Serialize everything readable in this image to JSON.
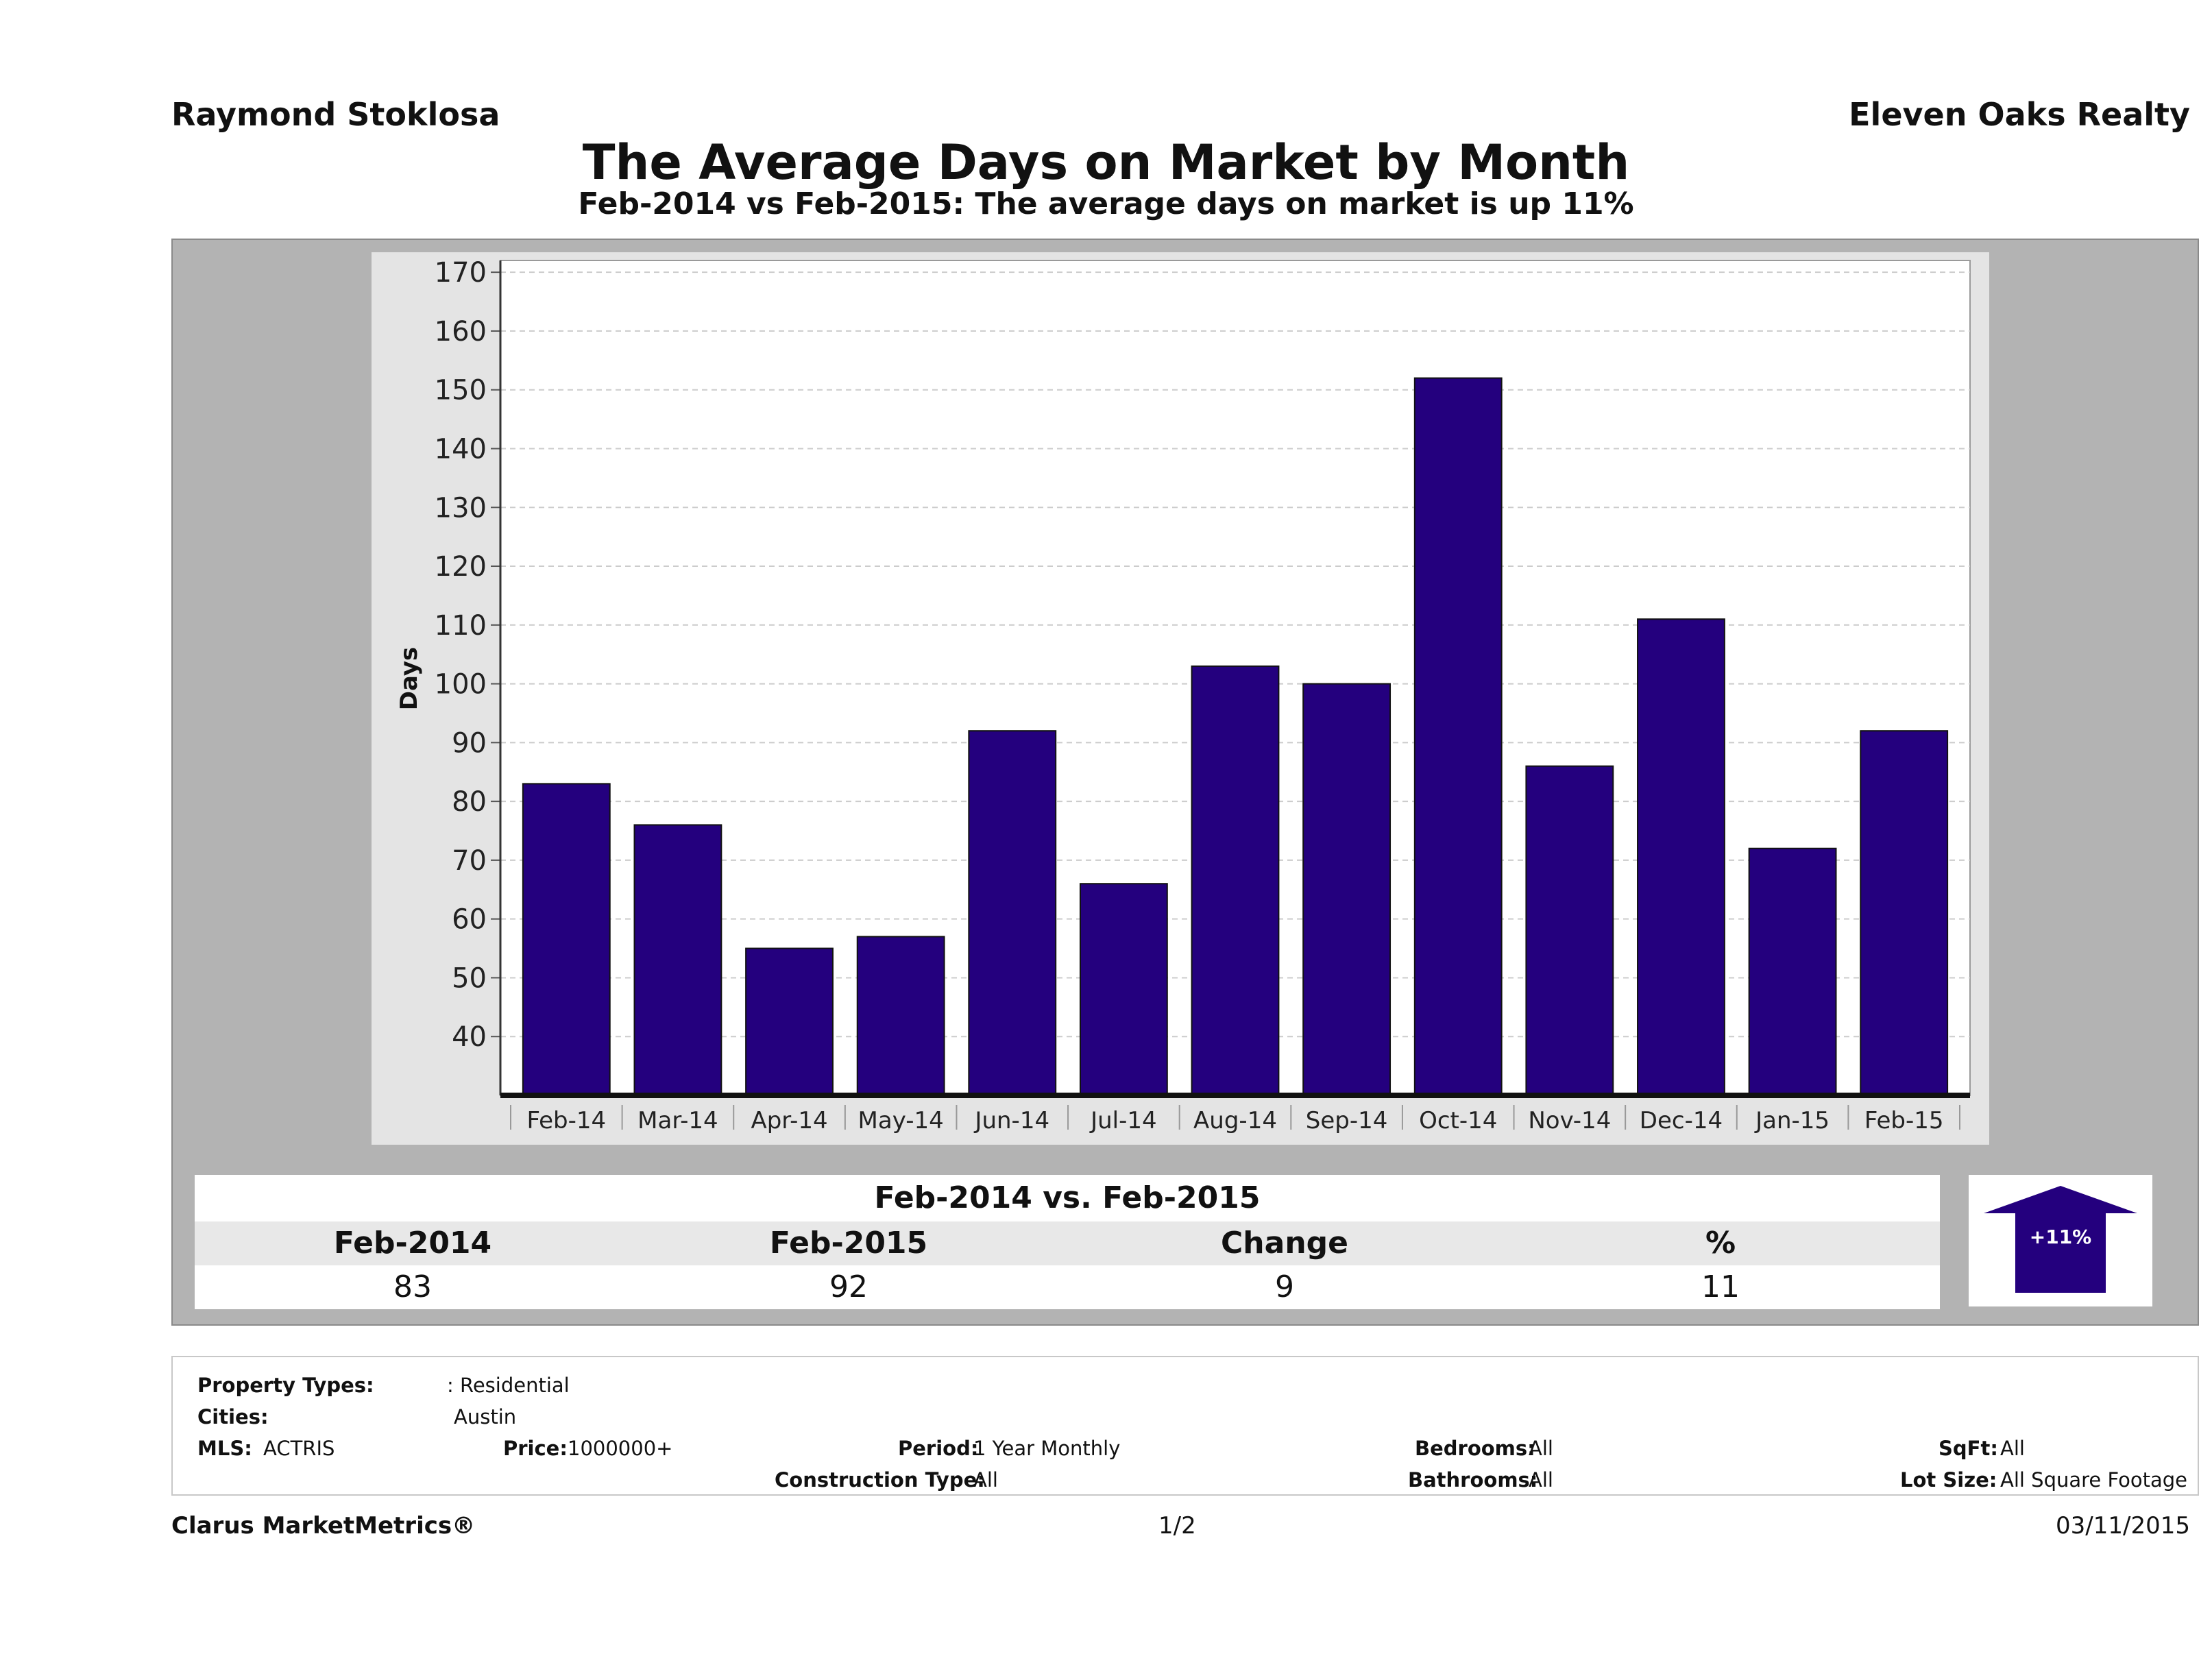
{
  "header": {
    "agent_name": "Raymond Stoklosa",
    "company": "Eleven Oaks Realty",
    "title": "The Average Days on Market by Month",
    "subtitle": "Feb-2014 vs Feb-2015: The average days on market is up 11%"
  },
  "colors": {
    "bar": "#24007e",
    "panel_bg": "#b3b3b3",
    "plot_bg": "#ffffff",
    "grid": "#cccccc"
  },
  "chart_data": {
    "type": "bar",
    "ylabel": "Days",
    "xlabel": "",
    "categories": [
      "Feb-14",
      "Mar-14",
      "Apr-14",
      "May-14",
      "Jun-14",
      "Jul-14",
      "Aug-14",
      "Sep-14",
      "Oct-14",
      "Nov-14",
      "Dec-14",
      "Jan-15",
      "Feb-15"
    ],
    "values": [
      83,
      76,
      55,
      57,
      92,
      66,
      103,
      100,
      152,
      86,
      111,
      72,
      92
    ],
    "ylim": [
      30,
      172
    ],
    "yticks": [
      40,
      50,
      60,
      70,
      80,
      90,
      100,
      110,
      120,
      130,
      140,
      150,
      160,
      170
    ],
    "grid": true,
    "legend": "none"
  },
  "comparison": {
    "heading": "Feb-2014 vs. Feb-2015",
    "labels": [
      "Feb-2014",
      "Feb-2015",
      "Change",
      "%"
    ],
    "values": [
      "83",
      "92",
      "9",
      "11"
    ],
    "arrow_label": "+11%"
  },
  "criteria": {
    "property_types_label": "Property Types:",
    "property_types_value": ": Residential",
    "cities_label": "Cities:",
    "cities_value": "Austin",
    "mls_label": "MLS:",
    "mls_value": "ACTRIS",
    "price_label": "Price:",
    "price_value": "1000000+",
    "period_label": "Period:",
    "period_value": "1 Year Monthly",
    "construction_label": "Construction Type:",
    "construction_value": "All",
    "bedrooms_label": "Bedrooms:",
    "bedrooms_value": "All",
    "bathrooms_label": "Bathrooms:",
    "bathrooms_value": "All",
    "sqft_label": "SqFt:",
    "sqft_value": "All",
    "lotsize_label": "Lot Size:",
    "lotsize_value": "All Square Footage"
  },
  "footer": {
    "brand": "Clarus MarketMetrics®",
    "page": "1/2",
    "date": "03/11/2015"
  }
}
